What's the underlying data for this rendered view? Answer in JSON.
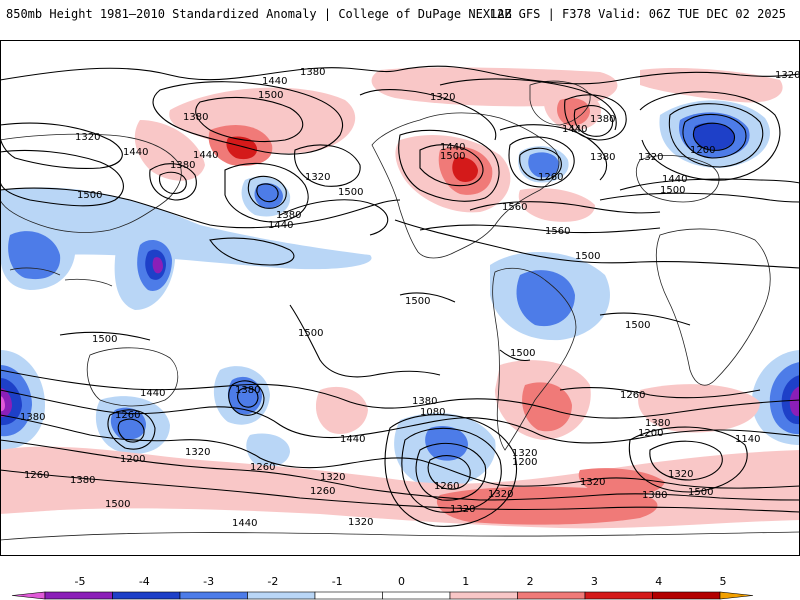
{
  "header": {
    "left_title": "850mb Height 1981–2010 Standardized Anomaly | College of DuPage NEXLAB",
    "right_title": "12Z GFS | F378 Valid: 06Z TUE DEC 02 2025"
  },
  "colors": {
    "neg5": "#e05ad8",
    "neg4": "#8b1fb8",
    "neg3": "#1e40c8",
    "neg2": "#4d7ce8",
    "neg1": "#b9d6f6",
    "zero": "#ffffff",
    "pos1": "#f9c7c7",
    "pos2": "#f07a78",
    "pos3": "#d41a1a",
    "pos4": "#b30000",
    "pos5": "#f2a000"
  },
  "contour_labels": [
    {
      "id": "c1",
      "text": "1380"
    },
    {
      "id": "c2",
      "text": "1440"
    },
    {
      "id": "c3",
      "text": "1500"
    },
    {
      "id": "c4",
      "text": "1380"
    },
    {
      "id": "c5",
      "text": "1320"
    },
    {
      "id": "c6",
      "text": "1440"
    },
    {
      "id": "c7",
      "text": "1440"
    },
    {
      "id": "c8",
      "text": "1380"
    },
    {
      "id": "c9",
      "text": "1320"
    },
    {
      "id": "c10",
      "text": "1500"
    },
    {
      "id": "c11",
      "text": "1380"
    },
    {
      "id": "c12",
      "text": "1440"
    },
    {
      "id": "c13",
      "text": "1320"
    },
    {
      "id": "c14",
      "text": "1440"
    },
    {
      "id": "c15",
      "text": "1500"
    },
    {
      "id": "c16",
      "text": "1260"
    },
    {
      "id": "c17",
      "text": "1560"
    },
    {
      "id": "c18",
      "text": "1560"
    },
    {
      "id": "c19",
      "text": "1380"
    },
    {
      "id": "c20",
      "text": "1320"
    },
    {
      "id": "c21",
      "text": "1200"
    },
    {
      "id": "c22",
      "text": "1440"
    },
    {
      "id": "c23",
      "text": "1500"
    },
    {
      "id": "c24",
      "text": "1320"
    },
    {
      "id": "c25",
      "text": "1440"
    },
    {
      "id": "c26",
      "text": "1380"
    },
    {
      "id": "c27",
      "text": "1500"
    },
    {
      "id": "c28",
      "text": "1500"
    },
    {
      "id": "c29",
      "text": "1500"
    },
    {
      "id": "c30",
      "text": "1500"
    },
    {
      "id": "c31",
      "text": "1500"
    },
    {
      "id": "c32",
      "text": "1500"
    },
    {
      "id": "c33",
      "text": "1500"
    },
    {
      "id": "c34",
      "text": "1440"
    },
    {
      "id": "c35",
      "text": "1380"
    },
    {
      "id": "c36",
      "text": "1260"
    },
    {
      "id": "c37",
      "text": "1200"
    },
    {
      "id": "c38",
      "text": "1320"
    },
    {
      "id": "c39",
      "text": "1380"
    },
    {
      "id": "c40",
      "text": "1260"
    },
    {
      "id": "c41",
      "text": "1440"
    },
    {
      "id": "c42",
      "text": "1320"
    },
    {
      "id": "c43",
      "text": "1260"
    },
    {
      "id": "c44",
      "text": "1260"
    },
    {
      "id": "c45",
      "text": "1320"
    },
    {
      "id": "c46",
      "text": "1380"
    },
    {
      "id": "c47",
      "text": "1500"
    },
    {
      "id": "c48",
      "text": "1380"
    },
    {
      "id": "c49",
      "text": "1080"
    },
    {
      "id": "c50",
      "text": "1260"
    },
    {
      "id": "c51",
      "text": "1200"
    },
    {
      "id": "c52",
      "text": "1320"
    },
    {
      "id": "c53",
      "text": "1320"
    },
    {
      "id": "c54",
      "text": "1320"
    },
    {
      "id": "c55",
      "text": "1440"
    },
    {
      "id": "c56",
      "text": "1380"
    },
    {
      "id": "c57",
      "text": "1200"
    },
    {
      "id": "c58",
      "text": "1140"
    },
    {
      "id": "c59",
      "text": "1320"
    },
    {
      "id": "c60",
      "text": "1380"
    },
    {
      "id": "c61",
      "text": "1500"
    },
    {
      "id": "c62",
      "text": "1260"
    },
    {
      "id": "c63",
      "text": "1320"
    }
  ],
  "colorbar": {
    "ticks": [
      "-5",
      "-4",
      "-3",
      "-2",
      "-1",
      "0",
      "1",
      "2",
      "3",
      "4",
      "5"
    ]
  }
}
